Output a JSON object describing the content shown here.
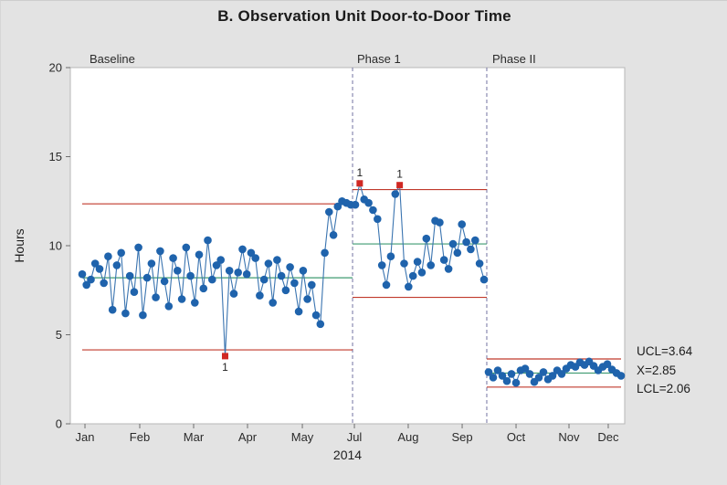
{
  "header": {
    "title": "B. Observation Unit Door-to-Door Time"
  },
  "annotations": {
    "ucl": "UCL=3.64",
    "xbar": "X=2.85",
    "lcl": "LCL=2.06"
  },
  "colors": {
    "background": "#e3e3e3",
    "plot_background": "#ffffff",
    "plot_border": "#b7b7b7",
    "tick": "#6e6e6e",
    "tick_text": "#2b2b2b",
    "series_point": "#1f63ac",
    "series_line": "#3a74b0",
    "limit_line": "#c0392b",
    "center_line": "#3f9b71",
    "stage_divider": "#7272a0",
    "out_of_control": "#d02823",
    "ooc_label": "#1f1f1f"
  },
  "chart_data": {
    "type": "line",
    "subtype": "individuals-control-chart-with-stages",
    "title": "B. Observation Unit Door-to-Door Time",
    "ylabel": "Hours",
    "xlabel": "2014",
    "ylim": [
      0,
      20
    ],
    "y_ticks": [
      0,
      5,
      10,
      15,
      20
    ],
    "x_unit": "fraction of x-axis span (Jan-Dec 2014, uneven month ticks as rendered)",
    "x_ticks": [
      {
        "label": "Jan",
        "f": 0.0264
      },
      {
        "label": "Feb",
        "f": 0.1252
      },
      {
        "label": "Mar",
        "f": 0.2224
      },
      {
        "label": "Apr",
        "f": 0.3196
      },
      {
        "label": "May",
        "f": 0.4185
      },
      {
        "label": "Jul",
        "f": 0.5124
      },
      {
        "label": "Aug",
        "f": 0.6095
      },
      {
        "label": "Sep",
        "f": 0.7068
      },
      {
        "label": "Oct",
        "f": 0.804
      },
      {
        "label": "Nov",
        "f": 0.8995
      },
      {
        "label": "Dec",
        "f": 0.9703
      }
    ],
    "stage_boundaries_f": [
      0.5091,
      0.7512
    ],
    "grid": false,
    "legend_position": "right-of-plot",
    "right_labels": [
      "UCL=3.64",
      "X=2.85",
      "LCL=2.06"
    ],
    "phases": [
      {
        "label": "Baseline",
        "ucl": 12.35,
        "center": 8.2,
        "lcl": 4.15,
        "line_f": [
          0.0214,
          0.5091
        ],
        "points_f": [
          0.0214,
          0.5058
        ],
        "values": [
          8.4,
          7.8,
          8.1,
          9.0,
          8.7,
          7.9,
          9.4,
          6.4,
          8.9,
          9.6,
          6.2,
          8.3,
          7.4,
          9.9,
          6.1,
          8.2,
          9.0,
          7.1,
          9.7,
          8.0,
          6.6,
          9.3,
          8.6,
          7.0,
          9.9,
          8.3,
          6.8,
          9.5,
          7.6,
          10.3,
          8.1,
          8.9,
          9.2,
          3.8,
          8.6,
          7.3,
          8.5,
          9.8,
          8.4,
          9.6,
          9.3,
          7.2,
          8.1,
          9.0,
          6.8,
          9.2,
          8.3,
          7.5,
          8.8,
          7.9,
          6.3,
          8.6,
          7.0,
          7.8,
          6.1,
          5.6,
          9.6,
          11.9,
          10.6,
          12.2,
          12.5,
          12.4,
          12.3
        ],
        "out_of_control": [
          {
            "index": 33,
            "label": "1",
            "side": "below"
          }
        ]
      },
      {
        "label": "Phase 1",
        "ucl": 13.15,
        "center": 10.1,
        "lcl": 7.1,
        "line_f": [
          0.5091,
          0.7512
        ],
        "points_f": [
          0.514,
          0.7463
        ],
        "values": [
          12.3,
          13.5,
          12.6,
          12.4,
          12.0,
          11.5,
          8.9,
          7.8,
          9.4,
          12.9,
          13.4,
          9.0,
          7.7,
          8.3,
          9.1,
          8.5,
          10.4,
          8.9,
          11.4,
          11.3,
          9.2,
          8.7,
          10.1,
          9.6,
          11.2,
          10.2,
          9.8,
          10.3,
          9.0,
          8.1
        ],
        "out_of_control": [
          {
            "index": 1,
            "label": "1",
            "side": "above"
          },
          {
            "index": 10,
            "label": "1",
            "side": "above"
          }
        ]
      },
      {
        "label": "Phase II",
        "ucl": 3.64,
        "center": 2.85,
        "lcl": 2.06,
        "line_f": [
          0.7512,
          0.9934
        ],
        "points_f": [
          0.7545,
          0.9934
        ],
        "values": [
          2.9,
          2.6,
          3.0,
          2.7,
          2.4,
          2.8,
          2.3,
          3.0,
          3.1,
          2.8,
          2.35,
          2.6,
          2.9,
          2.5,
          2.7,
          3.0,
          2.8,
          3.1,
          3.3,
          3.2,
          3.45,
          3.3,
          3.5,
          3.25,
          3.0,
          3.2,
          3.35,
          3.05,
          2.85,
          2.7
        ],
        "out_of_control": []
      }
    ]
  }
}
